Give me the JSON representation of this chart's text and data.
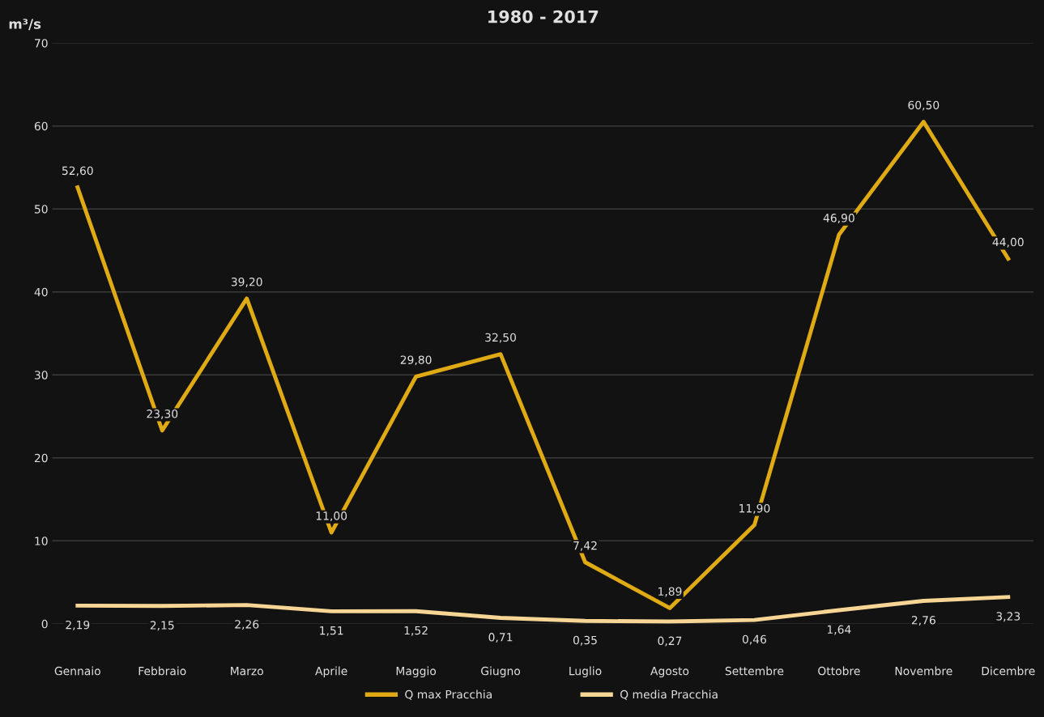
{
  "chart_data": {
    "type": "line",
    "title": "1980 - 2017",
    "ylabel": "m³/s",
    "categories": [
      "Gennaio",
      "Febbraio",
      "Marzo",
      "Aprile",
      "Maggio",
      "Giugno",
      "Luglio",
      "Agosto",
      "Settembre",
      "Ottobre",
      "Novembre",
      "Dicembre"
    ],
    "series": [
      {
        "name": "Q max Pracchia",
        "color": "#e0aa14",
        "values": [
          52.6,
          23.3,
          39.2,
          11.0,
          29.8,
          32.5,
          7.42,
          1.89,
          11.9,
          46.9,
          60.5,
          44.0
        ],
        "value_labels": [
          "52,60",
          "23,30",
          "39,20",
          "11,00",
          "29,80",
          "32,50",
          "7,42",
          "1,89",
          "11,90",
          "46,90",
          "60,50",
          "44,00"
        ]
      },
      {
        "name": "Q media Pracchia",
        "color": "#f7d595",
        "values": [
          2.19,
          2.15,
          2.26,
          1.51,
          1.52,
          0.71,
          0.35,
          0.27,
          0.46,
          1.64,
          2.76,
          3.23
        ],
        "value_labels": [
          "2,19",
          "2,15",
          "2,26",
          "1,51",
          "1,52",
          "0,71",
          "0,35",
          "0,27",
          "0,46",
          "1,64",
          "2,76",
          "3,23"
        ]
      }
    ],
    "ylim": [
      0,
      70
    ],
    "yticks": [
      0,
      10,
      20,
      30,
      40,
      50,
      60,
      70
    ],
    "grid": "y",
    "legend": "bottom",
    "marker": "none",
    "line_style": "solid"
  }
}
